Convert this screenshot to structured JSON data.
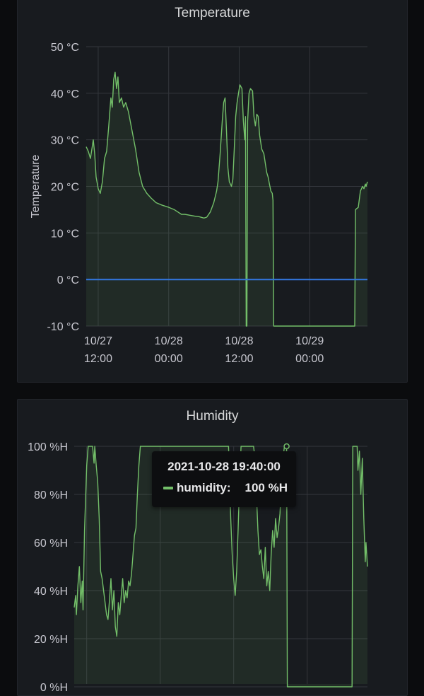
{
  "panels": {
    "temperature": {
      "title": "Temperature"
    },
    "humidity": {
      "title": "Humidity"
    }
  },
  "tooltip": {
    "time": "2021-10-28 19:40:00",
    "series": "humidity:",
    "value": "100 %H"
  },
  "colors": {
    "series_line": "#73bf69",
    "series_fill": "rgba(115,191,105,0.10)",
    "threshold_line": "#3274d9",
    "grid": "#34373d"
  },
  "chart_data": [
    {
      "type": "line",
      "title": "Temperature",
      "ylabel": "Temperature",
      "xlabel": "",
      "ylim": [
        -10,
        50
      ],
      "xlim": [
        -1.7,
        38.2
      ],
      "y_ticks": [
        {
          "value": 50,
          "label": "50 °C"
        },
        {
          "value": 40,
          "label": "40 °C"
        },
        {
          "value": 30,
          "label": "30 °C"
        },
        {
          "value": 20,
          "label": "20 °C"
        },
        {
          "value": 10,
          "label": "10 °C"
        },
        {
          "value": 0,
          "label": "0 °C"
        },
        {
          "value": -10,
          "label": "-10 °C"
        }
      ],
      "x_ticks": [
        {
          "value": 0,
          "label": [
            "10/27",
            "12:00"
          ]
        },
        {
          "value": 10,
          "label": [
            "10/28",
            "00:00"
          ]
        },
        {
          "value": 20,
          "label": [
            "10/28",
            "12:00"
          ]
        },
        {
          "value": 30,
          "label": [
            "10/29",
            "00:00"
          ]
        }
      ],
      "grid": true,
      "series": [
        {
          "name": "temperature",
          "color": "#73bf69",
          "fill": true,
          "points": [
            [
              -1.7,
              28.5
            ],
            [
              -1.4,
              27.5
            ],
            [
              -1.1,
              26
            ],
            [
              -0.9,
              28
            ],
            [
              -0.7,
              30
            ],
            [
              -0.5,
              27
            ],
            [
              -0.3,
              22
            ],
            [
              0.0,
              19.5
            ],
            [
              0.3,
              18.5
            ],
            [
              0.6,
              21
            ],
            [
              0.9,
              26
            ],
            [
              1.2,
              27.5
            ],
            [
              1.5,
              33
            ],
            [
              1.8,
              39
            ],
            [
              2.0,
              37
            ],
            [
              2.2,
              43
            ],
            [
              2.4,
              44.5
            ],
            [
              2.6,
              41
            ],
            [
              2.8,
              43.5
            ],
            [
              3.0,
              38
            ],
            [
              3.3,
              39
            ],
            [
              3.6,
              37
            ],
            [
              3.9,
              38
            ],
            [
              4.3,
              36
            ],
            [
              4.8,
              32
            ],
            [
              5.3,
              28
            ],
            [
              5.8,
              23
            ],
            [
              6.3,
              20
            ],
            [
              6.9,
              18.5
            ],
            [
              7.5,
              17.5
            ],
            [
              8.2,
              16.5
            ],
            [
              9.0,
              16
            ],
            [
              10.0,
              15.5
            ],
            [
              10.8,
              15
            ],
            [
              11.3,
              14.5
            ],
            [
              11.8,
              14
            ],
            [
              12.3,
              14
            ],
            [
              13.0,
              13.8
            ],
            [
              13.7,
              13.6
            ],
            [
              14.3,
              13.5
            ],
            [
              15.0,
              13.2
            ],
            [
              15.4,
              13.4
            ],
            [
              15.9,
              14.5
            ],
            [
              16.4,
              16.5
            ],
            [
              16.8,
              19
            ],
            [
              17.0,
              21
            ],
            [
              17.3,
              27
            ],
            [
              17.6,
              34
            ],
            [
              17.8,
              38
            ],
            [
              18.0,
              39
            ],
            [
              18.2,
              32
            ],
            [
              18.4,
              24
            ],
            [
              18.6,
              21
            ],
            [
              18.9,
              20
            ],
            [
              19.1,
              21.5
            ],
            [
              19.3,
              28
            ],
            [
              19.5,
              35
            ],
            [
              19.7,
              38
            ],
            [
              19.9,
              40
            ],
            [
              20.1,
              41.8
            ],
            [
              20.4,
              41
            ],
            [
              20.6,
              34
            ],
            [
              20.8,
              30
            ],
            [
              20.9,
              35
            ],
            [
              21.0,
              -10
            ],
            [
              21.1,
              -10
            ],
            [
              21.2,
              34
            ],
            [
              21.4,
              40
            ],
            [
              21.6,
              41
            ],
            [
              21.9,
              40.5
            ],
            [
              22.1,
              35
            ],
            [
              22.3,
              33
            ],
            [
              22.5,
              35.5
            ],
            [
              22.7,
              35
            ],
            [
              22.9,
              31
            ],
            [
              23.2,
              28
            ],
            [
              23.5,
              27
            ],
            [
              23.7,
              25
            ],
            [
              23.9,
              23
            ],
            [
              24.1,
              22
            ],
            [
              24.3,
              20.5
            ],
            [
              24.5,
              19
            ],
            [
              24.7,
              18.5
            ],
            [
              24.8,
              17
            ],
            [
              24.9,
              -10
            ],
            [
              36.4,
              -10
            ],
            [
              36.5,
              15
            ],
            [
              36.9,
              15.5
            ],
            [
              37.2,
              19
            ],
            [
              37.5,
              20
            ],
            [
              37.7,
              19.5
            ],
            [
              37.9,
              20.5
            ],
            [
              38.0,
              20
            ],
            [
              38.2,
              21
            ]
          ]
        },
        {
          "name": "",
          "color": "#3274d9",
          "fill": false,
          "points": [
            [
              -1.7,
              0
            ],
            [
              38.2,
              0
            ]
          ]
        }
      ]
    },
    {
      "type": "line",
      "title": "Humidity",
      "ylim": [
        0,
        100
      ],
      "xlim": [
        -1.7,
        38.2
      ],
      "y_ticks": [
        {
          "value": 100,
          "label": "100 %H"
        },
        {
          "value": 80,
          "label": "80 %H"
        },
        {
          "value": 60,
          "label": "60 %H"
        },
        {
          "value": 40,
          "label": "40 %H"
        },
        {
          "value": 20,
          "label": "20 %H"
        },
        {
          "value": 0,
          "label": "0 %H"
        }
      ],
      "grid": true,
      "series": [
        {
          "name": "humidity",
          "color": "#73bf69",
          "fill": true,
          "points": [
            [
              -1.7,
              33
            ],
            [
              -1.5,
              38
            ],
            [
              -1.4,
              30
            ],
            [
              -1.2,
              42
            ],
            [
              -1.0,
              50
            ],
            [
              -0.8,
              35
            ],
            [
              -0.6,
              44
            ],
            [
              -0.5,
              32
            ],
            [
              -0.3,
              65
            ],
            [
              0.0,
              92
            ],
            [
              0.2,
              100
            ],
            [
              0.8,
              100
            ],
            [
              1.0,
              93
            ],
            [
              1.1,
              100
            ],
            [
              1.3,
              92
            ],
            [
              1.5,
              85
            ],
            [
              1.7,
              70
            ],
            [
              1.9,
              48
            ],
            [
              2.1,
              45
            ],
            [
              2.3,
              40
            ],
            [
              2.5,
              35
            ],
            [
              2.7,
              30
            ],
            [
              2.9,
              28
            ],
            [
              3.1,
              36
            ],
            [
              3.3,
              45
            ],
            [
              3.5,
              32
            ],
            [
              3.7,
              40
            ],
            [
              3.9,
              25
            ],
            [
              4.1,
              21
            ],
            [
              4.3,
              35
            ],
            [
              4.5,
              30
            ],
            [
              4.7,
              38
            ],
            [
              4.9,
              45
            ],
            [
              5.1,
              35
            ],
            [
              5.3,
              40
            ],
            [
              5.5,
              37
            ],
            [
              5.7,
              44
            ],
            [
              5.9,
              42
            ],
            [
              6.1,
              47
            ],
            [
              6.3,
              55
            ],
            [
              6.5,
              63
            ],
            [
              6.7,
              66
            ],
            [
              6.9,
              80
            ],
            [
              7.1,
              92
            ],
            [
              7.3,
              100
            ],
            [
              19.3,
              100
            ],
            [
              19.4,
              90
            ],
            [
              19.6,
              70
            ],
            [
              19.8,
              55
            ],
            [
              20.0,
              45
            ],
            [
              20.2,
              38
            ],
            [
              20.4,
              48
            ],
            [
              20.6,
              65
            ],
            [
              20.8,
              85
            ],
            [
              21.0,
              100
            ],
            [
              22.7,
              100
            ],
            [
              22.9,
              95
            ],
            [
              23.1,
              80
            ],
            [
              23.3,
              65
            ],
            [
              23.5,
              55
            ],
            [
              23.7,
              57
            ],
            [
              23.9,
              50
            ],
            [
              24.1,
              45
            ],
            [
              24.3,
              58
            ],
            [
              24.5,
              42
            ],
            [
              24.7,
              48
            ],
            [
              24.9,
              40
            ],
            [
              25.1,
              55
            ],
            [
              25.3,
              65
            ],
            [
              25.5,
              58
            ],
            [
              25.7,
              70
            ],
            [
              25.9,
              62
            ],
            [
              26.1,
              66
            ],
            [
              26.3,
              72
            ],
            [
              26.5,
              85
            ],
            [
              26.7,
              95
            ],
            [
              26.9,
              100
            ],
            [
              27.2,
              100
            ],
            [
              27.3,
              0
            ],
            [
              36.1,
              0
            ],
            [
              36.2,
              100
            ],
            [
              36.8,
              100
            ],
            [
              36.9,
              90
            ],
            [
              37.1,
              98
            ],
            [
              37.3,
              80
            ],
            [
              37.5,
              95
            ],
            [
              37.7,
              70
            ],
            [
              37.9,
              52
            ],
            [
              38.0,
              60
            ],
            [
              38.2,
              50
            ]
          ]
        }
      ]
    }
  ]
}
